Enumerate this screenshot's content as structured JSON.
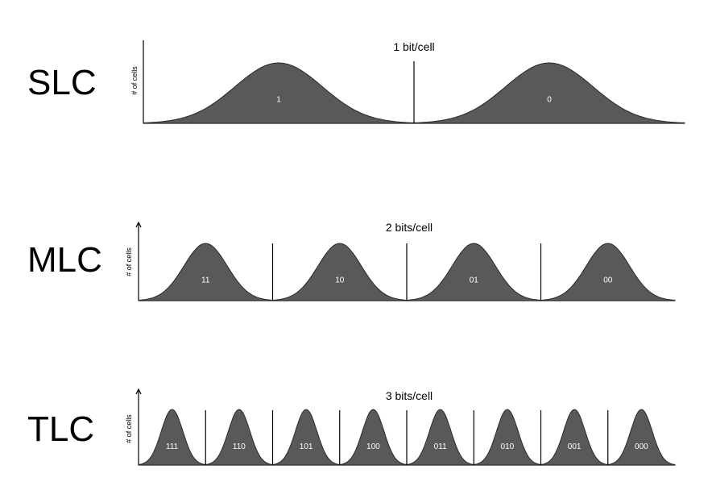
{
  "rows": [
    {
      "label": "SLC",
      "title": "1 bit/cell",
      "ylabel": "# of cells",
      "states": [
        "1",
        "0"
      ]
    },
    {
      "label": "MLC",
      "title": "2 bits/cell",
      "ylabel": "# of cells",
      "states": [
        "11",
        "10",
        "01",
        "00"
      ]
    },
    {
      "label": "TLC",
      "title": "3 bits/cell",
      "ylabel": "# of cells",
      "states": [
        "111",
        "110",
        "101",
        "100",
        "011",
        "010",
        "001",
        "000"
      ]
    }
  ]
}
